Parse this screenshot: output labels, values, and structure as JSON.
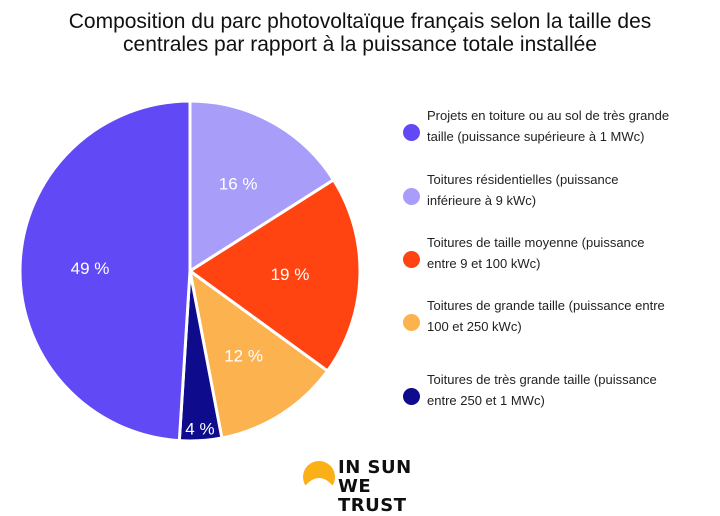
{
  "title": {
    "line1": "Composition du parc photovoltaïque français selon la taille des",
    "line2": "centrales par rapport à la puissance totale installée"
  },
  "chart_data": {
    "type": "pie",
    "title": "Composition du parc photovoltaïque français selon la taille des centrales par rapport à la puissance totale installée",
    "legend_position": "right",
    "slices": [
      {
        "label": "Toitures résidentielles (puissance inférieure à 9 kWc)",
        "value": 16,
        "value_label": "16 %",
        "color": "#a99dfa"
      },
      {
        "label": "Toitures de taille moyenne (puissance entre 9 et 100 kWc)",
        "value": 19,
        "value_label": "19 %",
        "color": "#ff4412"
      },
      {
        "label": "Toitures de grande taille (puissance entre 100 et 250 kWc)",
        "value": 12,
        "value_label": "12 %",
        "color": "#fbb24f"
      },
      {
        "label": "Toitures de très grande taille (puissance entre 250 et 1 MWc)",
        "value": 4,
        "value_label": "4 %",
        "color": "#0e0b8c"
      },
      {
        "label": "Projets en toiture ou au sol de très grande taille (puissance supérieure à 1 MWc)",
        "value": 49,
        "value_label": "49 %",
        "color": "#6149f5"
      }
    ]
  },
  "legend": {
    "items": [
      {
        "line1": "Projets en toiture ou au sol de très grande",
        "line2": "taille (puissance supérieure à 1 MWc)",
        "color": "#6149f5"
      },
      {
        "line1": "Toitures résidentielles (puissance",
        "line2": "inférieure à 9 kWc)",
        "color": "#a99dfa"
      },
      {
        "line1": "Toitures de taille moyenne (puissance",
        "line2": "entre 9 et 100 kWc)",
        "color": "#ff4412"
      },
      {
        "line1": "Toitures de grande taille (puissance entre",
        "line2": "100 et 250 kWc)",
        "color": "#fbb24f"
      },
      {
        "line1": "Toitures de très grande taille (puissance",
        "line2": "entre 250 et 1 MWc)",
        "color": "#0e0b8c"
      }
    ]
  },
  "logo": {
    "line1": "IN SUN",
    "line2": "WE TRUST",
    "sun_color": "#fcb017"
  }
}
